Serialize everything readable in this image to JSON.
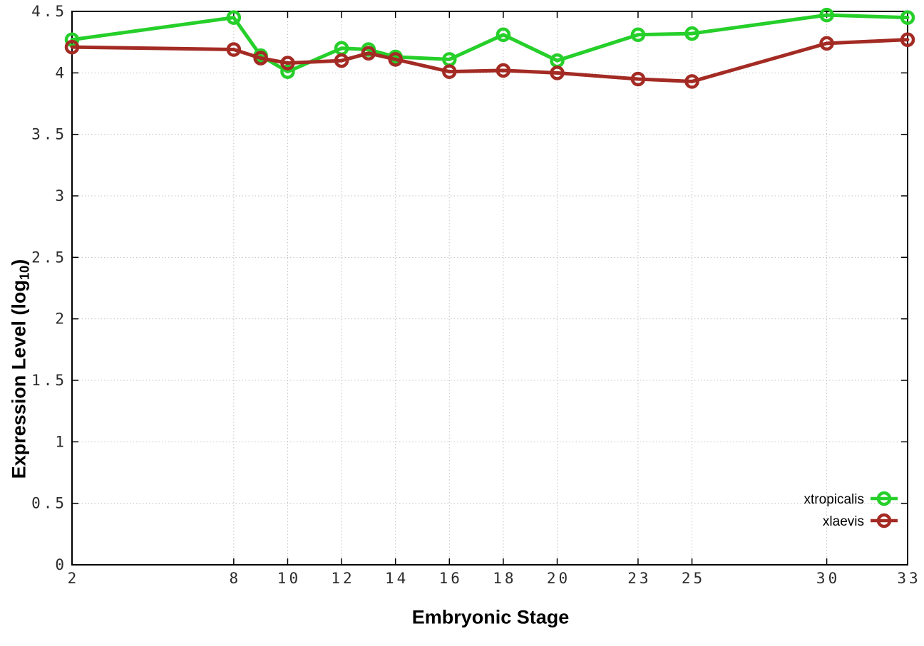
{
  "chart_data": {
    "type": "line",
    "title": "",
    "xlabel": "Embryonic Stage",
    "ylabel": {
      "pre": "Expression Level (log",
      "sub": "10",
      "post": ")"
    },
    "x": [
      2,
      8,
      9,
      10,
      12,
      13,
      14,
      16,
      18,
      20,
      23,
      25,
      30,
      33
    ],
    "series": [
      {
        "name": "xtropicalis",
        "color": "#26cf2a",
        "values": [
          4.27,
          4.45,
          4.14,
          4.01,
          4.2,
          4.19,
          4.13,
          4.11,
          4.31,
          4.1,
          4.31,
          4.32,
          4.47,
          4.45
        ]
      },
      {
        "name": "xlaevis",
        "color": "#a32b24",
        "values": [
          4.21,
          4.19,
          4.12,
          4.08,
          4.1,
          4.16,
          4.11,
          4.01,
          4.02,
          4.0,
          3.95,
          3.93,
          4.24,
          4.27
        ]
      }
    ],
    "xticks": {
      "values": [
        2,
        8,
        10,
        12,
        14,
        16,
        18,
        20,
        23,
        25,
        30,
        33
      ],
      "labels": [
        "2",
        "8",
        "10",
        "12",
        "14",
        "16",
        "18",
        "20",
        "23",
        "25",
        "30",
        "33"
      ]
    },
    "yticks": {
      "values": [
        0,
        0.5,
        1,
        1.5,
        2,
        2.5,
        3,
        3.5,
        4,
        4.5
      ],
      "labels": [
        "0",
        "0.5",
        "1",
        "1.5",
        "2",
        "2.5",
        "3",
        "3.5",
        "4",
        "4.5"
      ]
    },
    "xlim": [
      2,
      33
    ],
    "ylim": [
      0,
      4.5
    ],
    "grid": true,
    "legend_position": "inside-right",
    "marker": "open-circle"
  }
}
